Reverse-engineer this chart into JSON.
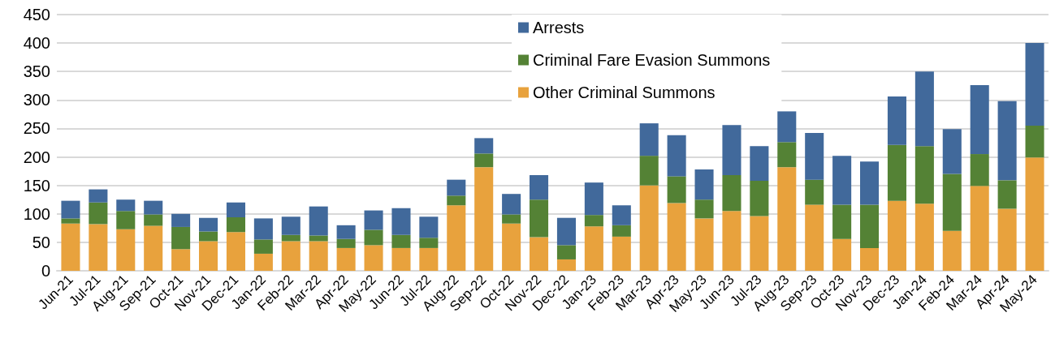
{
  "chart_data": {
    "type": "bar",
    "stacked": true,
    "categories": [
      "Jun-21",
      "Jul-21",
      "Aug-21",
      "Sep-21",
      "Oct-21",
      "Nov-21",
      "Dec-21",
      "Jan-22",
      "Feb-22",
      "Mar-22",
      "Apr-22",
      "May-22",
      "Jun-22",
      "Jul-22",
      "Aug-22",
      "Sep-22",
      "Oct-22",
      "Nov-22",
      "Dec-22",
      "Jan-23",
      "Feb-23",
      "Mar-23",
      "Apr-23",
      "May-23",
      "Jun-23",
      "Jul-23",
      "Aug-23",
      "Sep-23",
      "Oct-23",
      "Nov-23",
      "Dec-23",
      "Jan-24",
      "Feb-24",
      "Mar-24",
      "Apr-24",
      "May-24"
    ],
    "series": [
      {
        "name": "Other Criminal Summons",
        "color": "#e8a23d",
        "values": [
          83,
          82,
          73,
          79,
          38,
          52,
          68,
          30,
          52,
          52,
          40,
          45,
          40,
          40,
          115,
          182,
          83,
          59,
          20,
          78,
          60,
          150,
          119,
          92,
          105,
          96,
          182,
          116,
          56,
          40,
          123,
          118,
          70,
          149,
          109,
          199
        ]
      },
      {
        "name": "Criminal Fare Evasion Summons",
        "color": "#548235",
        "values": [
          9,
          38,
          32,
          20,
          39,
          17,
          26,
          25,
          11,
          10,
          16,
          27,
          23,
          18,
          17,
          24,
          16,
          66,
          25,
          20,
          20,
          52,
          47,
          33,
          63,
          62,
          44,
          44,
          60,
          76,
          98,
          101,
          100,
          56,
          50,
          56
        ]
      },
      {
        "name": "Arrests",
        "color": "#41699b",
        "values": [
          31,
          23,
          20,
          24,
          23,
          24,
          26,
          37,
          32,
          51,
          24,
          34,
          47,
          37,
          28,
          27,
          36,
          43,
          48,
          57,
          35,
          57,
          72,
          53,
          88,
          61,
          54,
          82,
          86,
          76,
          85,
          131,
          79,
          121,
          139,
          145
        ]
      }
    ],
    "ylim": [
      0,
      450
    ],
    "yticks": [
      0,
      50,
      100,
      150,
      200,
      250,
      300,
      350,
      400,
      450
    ],
    "grid": "y",
    "legend": "top"
  }
}
